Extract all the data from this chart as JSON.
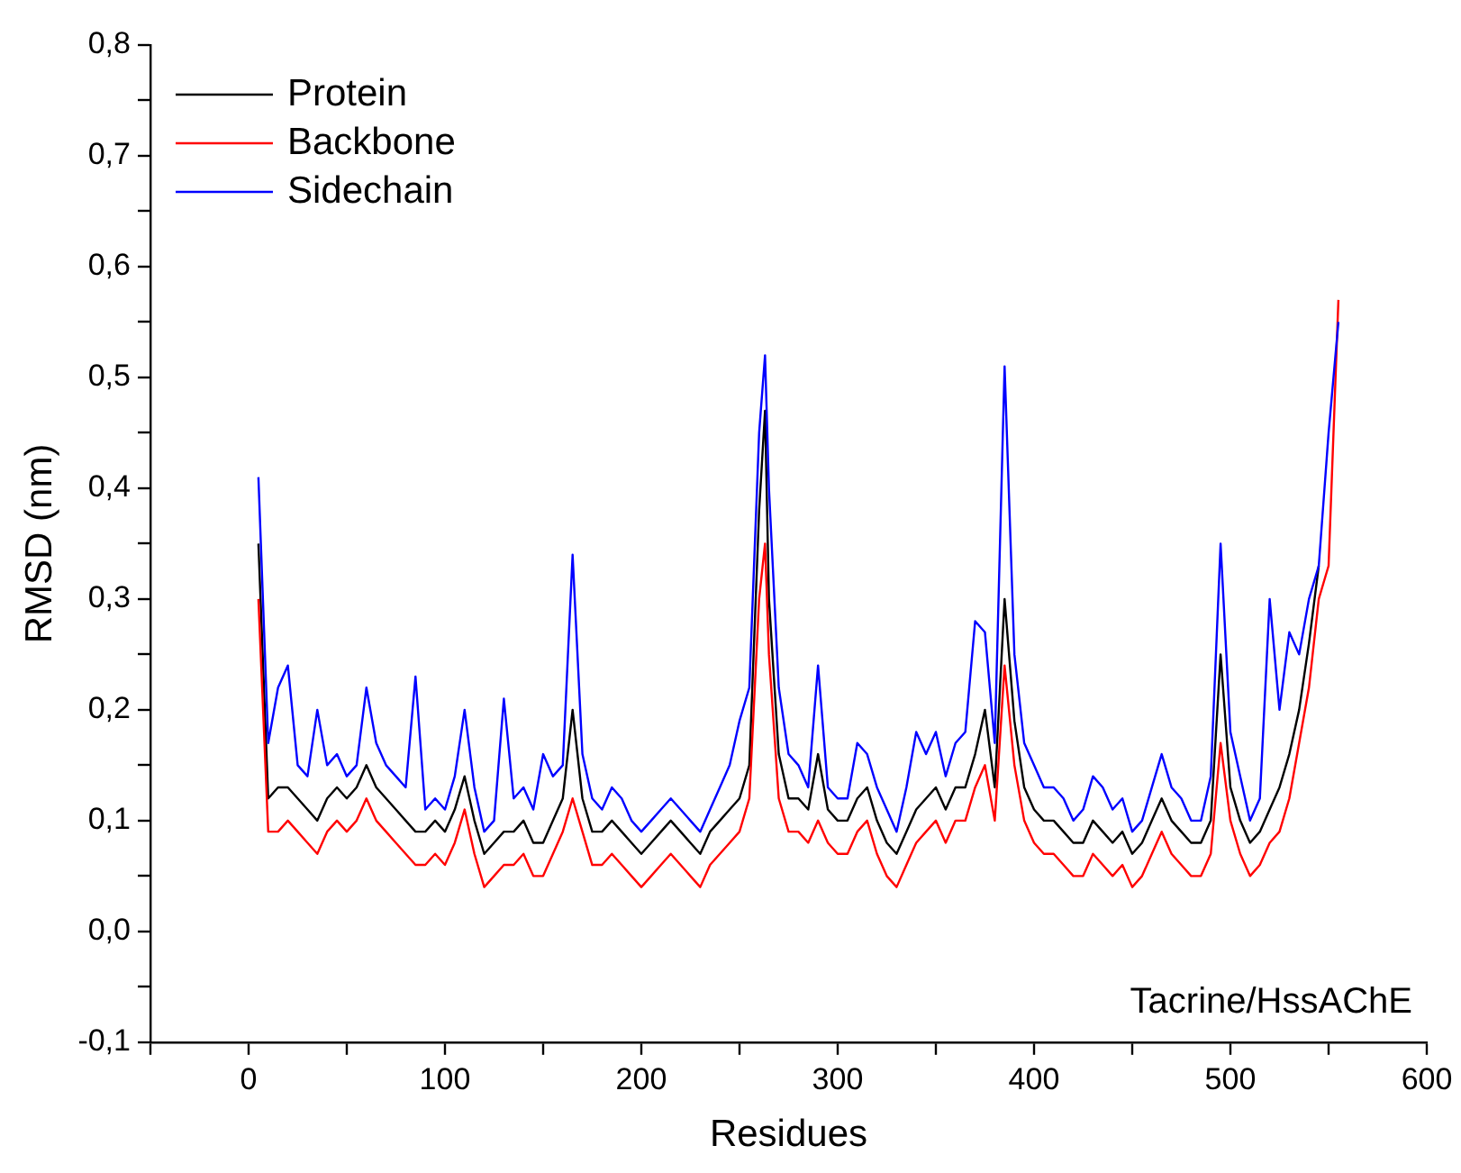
{
  "chart_data": {
    "type": "line",
    "xlabel": "Residues",
    "ylabel": "RMSD (nm)",
    "annotations": [
      "Tacrine/HssAChE"
    ],
    "xlim": [
      -50,
      600
    ],
    "xticks": [
      {
        "value": -50,
        "label": null
      },
      0,
      {
        "value": 50,
        "label": null
      },
      100,
      {
        "value": 150,
        "label": null
      },
      200,
      {
        "value": 250,
        "label": null
      },
      300,
      {
        "value": 350,
        "label": null
      },
      400,
      {
        "value": 450,
        "label": null
      },
      500,
      {
        "value": 550,
        "label": null
      },
      600
    ],
    "ylim": [
      -0.1,
      0.8
    ],
    "yticks": [
      {
        "value": -0.1,
        "label": "-0,1"
      },
      {
        "value": -0.05,
        "label": null
      },
      {
        "value": 0,
        "label": "0,0"
      },
      {
        "value": 0.05,
        "label": null
      },
      {
        "value": 0.1,
        "label": "0,1"
      },
      {
        "value": 0.15,
        "label": null
      },
      {
        "value": 0.2,
        "label": "0,2"
      },
      {
        "value": 0.25,
        "label": null
      },
      {
        "value": 0.3,
        "label": "0,3"
      },
      {
        "value": 0.35,
        "label": null
      },
      {
        "value": 0.4,
        "label": "0,4"
      },
      {
        "value": 0.45,
        "label": null
      },
      {
        "value": 0.5,
        "label": "0,5"
      },
      {
        "value": 0.55,
        "label": null
      },
      {
        "value": 0.6,
        "label": "0,6"
      },
      {
        "value": 0.65,
        "label": null
      },
      {
        "value": 0.7,
        "label": "0,7"
      },
      {
        "value": 0.75,
        "label": null
      },
      {
        "value": 0.8,
        "label": "0,8"
      }
    ],
    "grid": false,
    "legend": "top left",
    "marker": "none",
    "line_style": "solid",
    "x": [
      5,
      10,
      15,
      20,
      25,
      30,
      35,
      40,
      45,
      50,
      55,
      60,
      65,
      70,
      75,
      80,
      85,
      90,
      95,
      100,
      105,
      110,
      115,
      120,
      125,
      130,
      135,
      140,
      145,
      150,
      155,
      160,
      165,
      170,
      175,
      180,
      185,
      190,
      195,
      200,
      205,
      210,
      215,
      220,
      225,
      230,
      235,
      240,
      245,
      250,
      255,
      260,
      263,
      265,
      270,
      275,
      280,
      285,
      290,
      295,
      300,
      305,
      310,
      315,
      320,
      325,
      330,
      335,
      340,
      345,
      350,
      355,
      360,
      365,
      370,
      375,
      380,
      385,
      390,
      395,
      400,
      405,
      410,
      415,
      420,
      425,
      430,
      435,
      440,
      445,
      450,
      455,
      460,
      465,
      470,
      475,
      480,
      485,
      490,
      495,
      500,
      505,
      510,
      515,
      520,
      525,
      530,
      535,
      540,
      545,
      550,
      555
    ],
    "series": [
      {
        "name": "Protein",
        "color": "#000000",
        "values": [
          0.35,
          0.12,
          0.13,
          0.13,
          0.12,
          0.11,
          0.1,
          0.12,
          0.13,
          0.12,
          0.13,
          0.15,
          0.13,
          0.12,
          0.11,
          0.1,
          0.09,
          0.09,
          0.1,
          0.09,
          0.11,
          0.14,
          0.1,
          0.07,
          0.08,
          0.09,
          0.09,
          0.1,
          0.08,
          0.08,
          0.1,
          0.12,
          0.2,
          0.12,
          0.09,
          0.09,
          0.1,
          0.09,
          0.08,
          0.07,
          0.08,
          0.09,
          0.1,
          0.09,
          0.08,
          0.07,
          0.09,
          0.1,
          0.11,
          0.12,
          0.15,
          0.38,
          0.47,
          0.3,
          0.16,
          0.12,
          0.12,
          0.11,
          0.16,
          0.11,
          0.1,
          0.1,
          0.12,
          0.13,
          0.1,
          0.08,
          0.07,
          0.09,
          0.11,
          0.12,
          0.13,
          0.11,
          0.13,
          0.13,
          0.16,
          0.2,
          0.13,
          0.3,
          0.19,
          0.13,
          0.11,
          0.1,
          0.1,
          0.09,
          0.08,
          0.08,
          0.1,
          0.09,
          0.08,
          0.09,
          0.07,
          0.08,
          0.1,
          0.12,
          0.1,
          0.09,
          0.08,
          0.08,
          0.1,
          0.25,
          0.13,
          0.1,
          0.08,
          0.09,
          0.11,
          0.13,
          0.16,
          0.2,
          0.26,
          0.33,
          null,
          null
        ]
      },
      {
        "name": "Backbone",
        "color": "#ff0000",
        "values": [
          0.3,
          0.09,
          0.09,
          0.1,
          0.09,
          0.08,
          0.07,
          0.09,
          0.1,
          0.09,
          0.1,
          0.12,
          0.1,
          0.09,
          0.08,
          0.07,
          0.06,
          0.06,
          0.07,
          0.06,
          0.08,
          0.11,
          0.07,
          0.04,
          0.05,
          0.06,
          0.06,
          0.07,
          0.05,
          0.05,
          0.07,
          0.09,
          0.12,
          0.09,
          0.06,
          0.06,
          0.07,
          0.06,
          0.05,
          0.04,
          0.05,
          0.06,
          0.07,
          0.06,
          0.05,
          0.04,
          0.06,
          0.07,
          0.08,
          0.09,
          0.12,
          0.3,
          0.35,
          0.25,
          0.12,
          0.09,
          0.09,
          0.08,
          0.1,
          0.08,
          0.07,
          0.07,
          0.09,
          0.1,
          0.07,
          0.05,
          0.04,
          0.06,
          0.08,
          0.09,
          0.1,
          0.08,
          0.1,
          0.1,
          0.13,
          0.15,
          0.1,
          0.24,
          0.15,
          0.1,
          0.08,
          0.07,
          0.07,
          0.06,
          0.05,
          0.05,
          0.07,
          0.06,
          0.05,
          0.06,
          0.04,
          0.05,
          0.07,
          0.09,
          0.07,
          0.06,
          0.05,
          0.05,
          0.07,
          0.17,
          0.1,
          0.07,
          0.05,
          0.06,
          0.08,
          0.09,
          0.12,
          0.17,
          0.22,
          0.3,
          0.33,
          0.57
        ]
      },
      {
        "name": "Sidechain",
        "color": "#0000ff",
        "values": [
          0.41,
          0.17,
          0.22,
          0.24,
          0.15,
          0.14,
          0.2,
          0.15,
          0.16,
          0.14,
          0.15,
          0.22,
          0.17,
          0.15,
          0.14,
          0.13,
          0.23,
          0.11,
          0.12,
          0.11,
          0.14,
          0.2,
          0.13,
          0.09,
          0.1,
          0.21,
          0.12,
          0.13,
          0.11,
          0.16,
          0.14,
          0.15,
          0.34,
          0.16,
          0.12,
          0.11,
          0.13,
          0.12,
          0.1,
          0.09,
          0.1,
          0.11,
          0.12,
          0.11,
          0.1,
          0.09,
          0.11,
          0.13,
          0.15,
          0.19,
          0.22,
          0.45,
          0.52,
          0.4,
          0.22,
          0.16,
          0.15,
          0.13,
          0.24,
          0.13,
          0.12,
          0.12,
          0.17,
          0.16,
          0.13,
          0.11,
          0.09,
          0.13,
          0.18,
          0.16,
          0.18,
          0.14,
          0.17,
          0.18,
          0.28,
          0.27,
          0.17,
          0.51,
          0.25,
          0.17,
          0.15,
          0.13,
          0.13,
          0.12,
          0.1,
          0.11,
          0.14,
          0.13,
          0.11,
          0.12,
          0.09,
          0.1,
          0.13,
          0.16,
          0.13,
          0.12,
          0.1,
          0.1,
          0.14,
          0.35,
          0.18,
          0.14,
          0.1,
          0.12,
          0.3,
          0.2,
          0.27,
          0.25,
          0.3,
          0.33,
          0.45,
          0.55
        ]
      }
    ]
  }
}
